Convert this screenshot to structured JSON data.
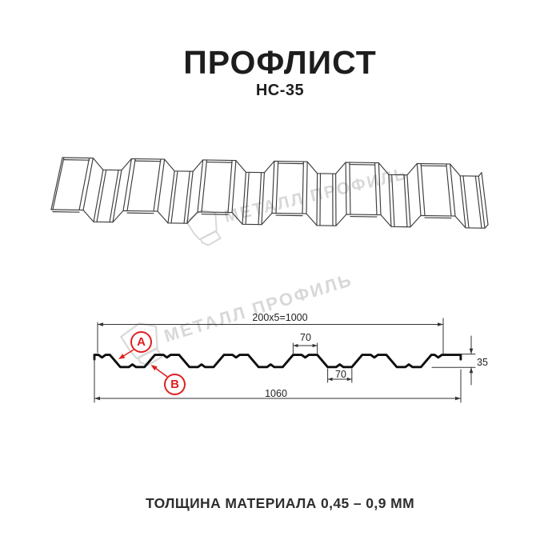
{
  "header": {
    "title": "ПРОФЛИСТ",
    "subtitle": "НС-35"
  },
  "watermark": {
    "text": "МЕТАЛЛ ПРОФИЛЬ"
  },
  "section": {
    "dims": {
      "working_width": "200x5=1000",
      "top_flange": "70",
      "bottom_flange": "70",
      "overall_width": "1060",
      "height": "35"
    },
    "marker_a": "А",
    "marker_b": "В"
  },
  "footer": {
    "note": "ТОЛЩИНА МАТЕРИАЛА 0,45 – 0,9 ММ"
  },
  "colors": {
    "accent_red": "#e02020",
    "profile_line": "#0f0f0f",
    "wireframe_line": "#3c3c3c",
    "dimension_line": "#333333",
    "watermark_gray": "#d8d8d8",
    "text_dark": "#1d1d1d"
  }
}
